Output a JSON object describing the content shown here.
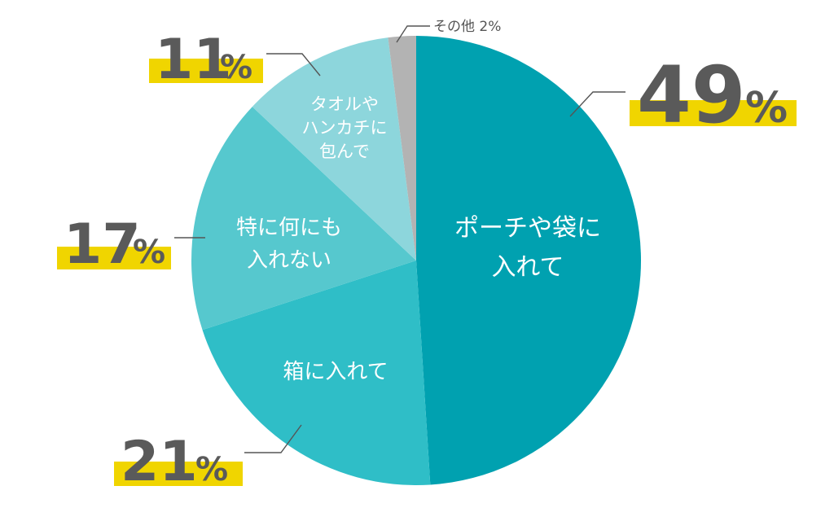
{
  "chart_data": {
    "type": "pie",
    "start_angle_deg": 0,
    "direction": "clockwise",
    "slices": [
      {
        "label_lines": [
          "ポーチや袋に",
          "入れて"
        ],
        "value": 49,
        "pct_text": "49",
        "color": "#00a1b0"
      },
      {
        "label_lines": [
          "箱に入れて"
        ],
        "value": 21,
        "pct_text": "21",
        "color": "#2fbec7"
      },
      {
        "label_lines": [
          "特に何にも",
          "入れない"
        ],
        "value": 17,
        "pct_text": "17",
        "color": "#56c8ce"
      },
      {
        "label_lines": [
          "タオルや",
          "ハンカチに",
          "包んで"
        ],
        "value": 11,
        "pct_text": "11",
        "color": "#8dd6dc"
      },
      {
        "label_lines": [
          "その他"
        ],
        "value": 2,
        "pct_text": "2%",
        "color": "#b3b3b3"
      }
    ],
    "percent_sign": "%",
    "highlight_color": "#f0d500",
    "title": "",
    "legend": "none"
  }
}
